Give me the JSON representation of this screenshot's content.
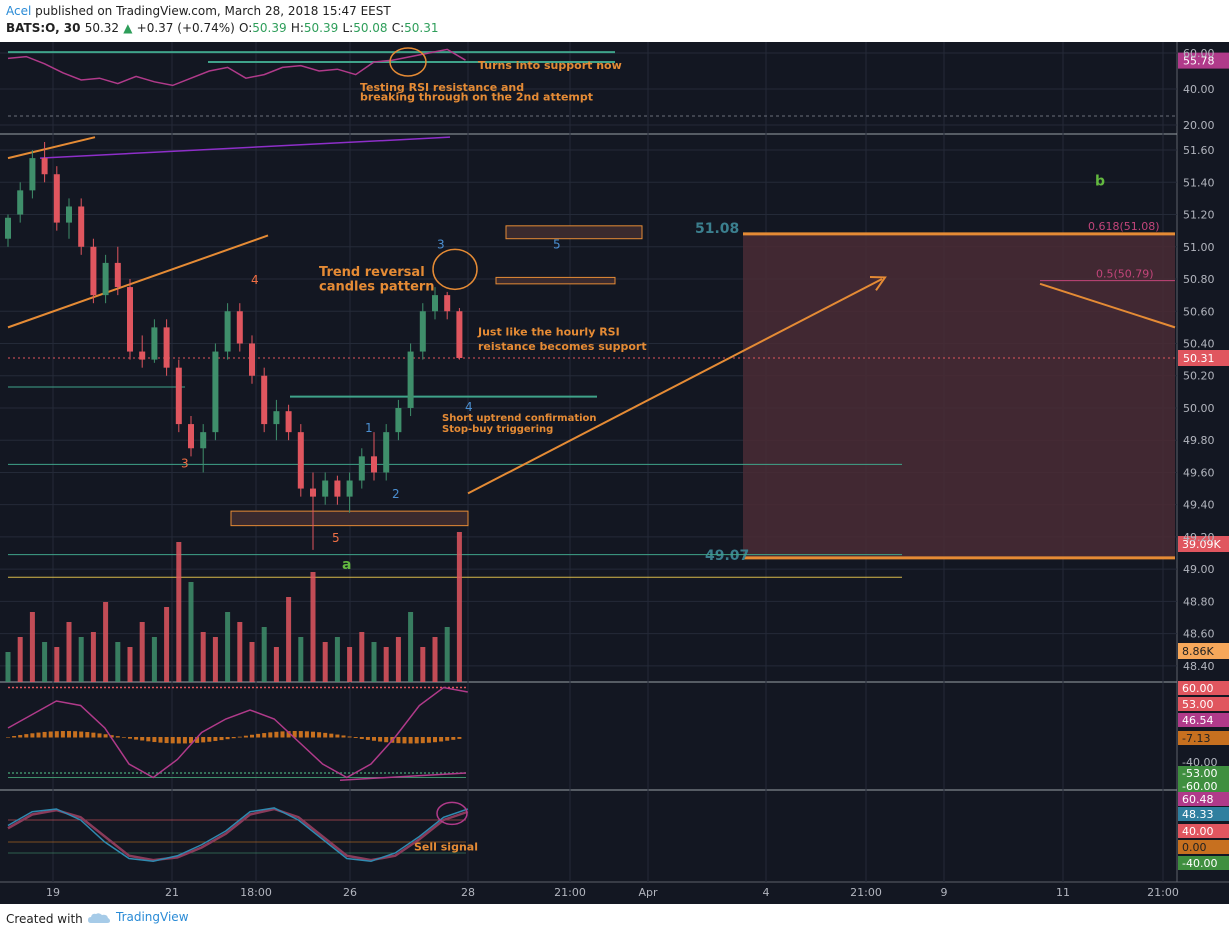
{
  "header": {
    "author": "Acel",
    "published_text": "published on TradingView.com, March 28, 2018 15:47 EEST",
    "symbol": "BATS:O, 30",
    "last": "50.32",
    "change": "+0.37 (+0.74%)",
    "open_label": "O:",
    "open": "50.39",
    "high_label": "H:",
    "high": "50.39",
    "low_label": "L:",
    "low": "50.08",
    "close_label": "C:",
    "close": "50.31"
  },
  "footer": {
    "created_with": "Created with",
    "brand": "TradingView"
  },
  "colors": {
    "background": "#131722",
    "up": "#3f8f6b",
    "down": "#e0565f",
    "annotation": "#e58b35",
    "wave_blue": "#4b8fd1",
    "wave_orange": "#ef6f45",
    "wave_green": "#63b940",
    "level_teal": "#3b7f8e",
    "target_zone": "#4a2b35",
    "rsi": "#b03a8a",
    "support_line": "#3fa38a"
  },
  "chart_data": [
    {
      "type": "line",
      "name": "rsi-pane",
      "y_ticks": [
        "60.00",
        "40.00",
        "20.00"
      ],
      "ylim": [
        15,
        65
      ],
      "x": [
        0,
        3,
        6,
        9,
        12,
        15,
        18,
        21,
        24,
        27,
        30,
        33,
        36,
        39,
        42,
        45,
        48,
        51,
        54,
        57,
        60,
        63,
        66,
        69,
        72,
        75
      ],
      "values": [
        57,
        58,
        54,
        49,
        45,
        46,
        43,
        47,
        44,
        42,
        46,
        50,
        52,
        46,
        48,
        52,
        53,
        50,
        51,
        48,
        55,
        56,
        58,
        60,
        62,
        56
      ],
      "last_value": "55.78",
      "annotations": [
        "Turns into support now",
        "Testing RSI resistance and",
        "breaking through on the 2nd attempt"
      ]
    },
    {
      "type": "candlestick",
      "name": "price-pane",
      "y_ticks": [
        "51.60",
        "51.40",
        "51.20",
        "51.00",
        "50.80",
        "50.60",
        "50.40",
        "50.20",
        "50.00",
        "49.80",
        "49.60",
        "49.40",
        "49.20",
        "49.00",
        "48.80",
        "48.60",
        "48.40"
      ],
      "ylim": [
        48.3,
        51.65
      ],
      "x_ticks": [
        "19",
        "21",
        "18:00",
        "26",
        "28",
        "21:00",
        "Apr",
        "4",
        "21:00",
        "9",
        "11",
        "21:00"
      ],
      "candles": [
        {
          "i": 0,
          "o": 51.05,
          "h": 51.2,
          "l": 51.0,
          "c": 51.18
        },
        {
          "i": 2,
          "o": 51.2,
          "h": 51.4,
          "l": 51.15,
          "c": 51.35
        },
        {
          "i": 4,
          "o": 51.35,
          "h": 51.6,
          "l": 51.3,
          "c": 51.55
        },
        {
          "i": 6,
          "o": 51.55,
          "h": 51.65,
          "l": 51.4,
          "c": 51.45
        },
        {
          "i": 8,
          "o": 51.45,
          "h": 51.5,
          "l": 51.1,
          "c": 51.15
        },
        {
          "i": 10,
          "o": 51.15,
          "h": 51.3,
          "l": 51.05,
          "c": 51.25
        },
        {
          "i": 12,
          "o": 51.25,
          "h": 51.3,
          "l": 50.95,
          "c": 51.0
        },
        {
          "i": 14,
          "o": 51.0,
          "h": 51.05,
          "l": 50.65,
          "c": 50.7
        },
        {
          "i": 16,
          "o": 50.7,
          "h": 50.95,
          "l": 50.65,
          "c": 50.9
        },
        {
          "i": 18,
          "o": 50.9,
          "h": 51.0,
          "l": 50.7,
          "c": 50.75
        },
        {
          "i": 20,
          "o": 50.75,
          "h": 50.8,
          "l": 50.3,
          "c": 50.35
        },
        {
          "i": 22,
          "o": 50.35,
          "h": 50.45,
          "l": 50.25,
          "c": 50.3
        },
        {
          "i": 24,
          "o": 50.3,
          "h": 50.55,
          "l": 50.28,
          "c": 50.5
        },
        {
          "i": 26,
          "o": 50.5,
          "h": 50.55,
          "l": 50.2,
          "c": 50.25
        },
        {
          "i": 28,
          "o": 50.25,
          "h": 50.3,
          "l": 49.85,
          "c": 49.9
        },
        {
          "i": 30,
          "o": 49.9,
          "h": 49.95,
          "l": 49.7,
          "c": 49.75
        },
        {
          "i": 32,
          "o": 49.75,
          "h": 49.9,
          "l": 49.6,
          "c": 49.85
        },
        {
          "i": 34,
          "o": 49.85,
          "h": 50.4,
          "l": 49.8,
          "c": 50.35
        },
        {
          "i": 36,
          "o": 50.35,
          "h": 50.65,
          "l": 50.3,
          "c": 50.6
        },
        {
          "i": 38,
          "o": 50.6,
          "h": 50.65,
          "l": 50.35,
          "c": 50.4
        },
        {
          "i": 40,
          "o": 50.4,
          "h": 50.45,
          "l": 50.15,
          "c": 50.2
        },
        {
          "i": 42,
          "o": 50.2,
          "h": 50.25,
          "l": 49.85,
          "c": 49.9
        },
        {
          "i": 44,
          "o": 49.9,
          "h": 50.05,
          "l": 49.8,
          "c": 49.98
        },
        {
          "i": 46,
          "o": 49.98,
          "h": 50.02,
          "l": 49.8,
          "c": 49.85
        },
        {
          "i": 48,
          "o": 49.85,
          "h": 49.9,
          "l": 49.45,
          "c": 49.5
        },
        {
          "i": 50,
          "o": 49.5,
          "h": 49.6,
          "l": 49.12,
          "c": 49.45
        },
        {
          "i": 52,
          "o": 49.45,
          "h": 49.6,
          "l": 49.4,
          "c": 49.55
        },
        {
          "i": 54,
          "o": 49.55,
          "h": 49.58,
          "l": 49.4,
          "c": 49.45
        },
        {
          "i": 56,
          "o": 49.45,
          "h": 49.6,
          "l": 49.35,
          "c": 49.55
        },
        {
          "i": 58,
          "o": 49.55,
          "h": 49.75,
          "l": 49.5,
          "c": 49.7
        },
        {
          "i": 60,
          "o": 49.7,
          "h": 49.85,
          "l": 49.55,
          "c": 49.6
        },
        {
          "i": 62,
          "o": 49.6,
          "h": 49.9,
          "l": 49.55,
          "c": 49.85
        },
        {
          "i": 64,
          "o": 49.85,
          "h": 50.05,
          "l": 49.8,
          "c": 50.0
        },
        {
          "i": 66,
          "o": 50.0,
          "h": 50.4,
          "l": 49.95,
          "c": 50.35
        },
        {
          "i": 68,
          "o": 50.35,
          "h": 50.65,
          "l": 50.3,
          "c": 50.6
        },
        {
          "i": 70,
          "o": 50.6,
          "h": 50.75,
          "l": 50.55,
          "c": 50.7
        },
        {
          "i": 72,
          "o": 50.7,
          "h": 50.72,
          "l": 50.55,
          "c": 50.6
        },
        {
          "i": 74,
          "o": 50.6,
          "h": 50.62,
          "l": 50.3,
          "c": 50.31
        }
      ],
      "last_value": "50.31",
      "levels": [
        {
          "label": "51.08",
          "value": 51.08
        },
        {
          "label": "49.07",
          "value": 49.07
        },
        {
          "label": "0.618(51.08)",
          "value": 51.08
        },
        {
          "label": "0.5(50.79)",
          "value": 50.79
        }
      ],
      "wave_labels_blue": [
        "1",
        "2",
        "3",
        "4",
        "5"
      ],
      "wave_labels_orange": [
        "3",
        "4",
        "5"
      ],
      "wave_labels_green": [
        "a",
        "b"
      ],
      "annotations": [
        "Trend reversal",
        "candles pattern",
        "Just like the hourly RSI",
        "reistance becomes support",
        "Short uptrend confirmation",
        "Stop-buy triggering"
      ]
    },
    {
      "type": "bar",
      "name": "volume-pane",
      "x": [
        0,
        2,
        4,
        6,
        8,
        10,
        12,
        14,
        16,
        18,
        20,
        22,
        24,
        26,
        28,
        30,
        32,
        34,
        36,
        38,
        40,
        42,
        44,
        46,
        48,
        50,
        52,
        54,
        56,
        58,
        60,
        62,
        64,
        66,
        68,
        70,
        72,
        74
      ],
      "values": [
        6,
        9,
        14,
        8,
        7,
        12,
        9,
        10,
        16,
        8,
        7,
        12,
        9,
        15,
        28,
        20,
        10,
        9,
        14,
        12,
        8,
        11,
        7,
        17,
        9,
        22,
        8,
        9,
        7,
        10,
        8,
        7,
        9,
        14,
        7,
        9,
        11,
        30
      ],
      "last_value": "39.09K",
      "avg_value": "8.86K"
    },
    {
      "type": "line",
      "name": "oscillator-pane",
      "y_ticks": [
        "60.00",
        "53.00",
        "46.54",
        "-7.13",
        "-40.00",
        "-53.00",
        "-60.00"
      ],
      "values": [
        10,
        25,
        40,
        35,
        10,
        -30,
        -45,
        -25,
        5,
        20,
        30,
        20,
        -5,
        -30,
        -45,
        -30,
        0,
        35,
        55,
        50
      ],
      "last_value": "46.54"
    },
    {
      "type": "line",
      "name": "stochastic-pane",
      "y_ticks": [
        "60.48",
        "48.33",
        "40.00",
        "0.00",
        "-40.00"
      ],
      "k": [
        30,
        55,
        60,
        40,
        0,
        -30,
        -35,
        -25,
        -5,
        20,
        55,
        62,
        40,
        5,
        -30,
        -35,
        -20,
        10,
        45,
        60
      ],
      "d": [
        25,
        50,
        58,
        45,
        10,
        -25,
        -33,
        -28,
        -10,
        15,
        50,
        60,
        45,
        10,
        -25,
        -33,
        -25,
        5,
        40,
        55
      ],
      "last_value": "60.48",
      "annotations": [
        "Sell signal"
      ]
    }
  ]
}
